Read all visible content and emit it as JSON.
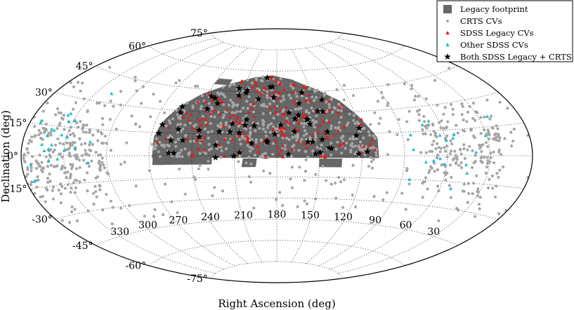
{
  "chart_data": {
    "type": "scatter",
    "projection": "aitoff",
    "xlabel": "Right Ascension (deg)",
    "ylabel": "Declination (deg)",
    "ra_tick_labels": [
      {
        "ra": 330,
        "label": "330"
      },
      {
        "ra": 300,
        "label": "300"
      },
      {
        "ra": 270,
        "label": "270"
      },
      {
        "ra": 240,
        "label": "240"
      },
      {
        "ra": 210,
        "label": "210"
      },
      {
        "ra": 180,
        "label": "180"
      },
      {
        "ra": 150,
        "label": "150"
      },
      {
        "ra": 120,
        "label": "120"
      },
      {
        "ra": 90,
        "label": "90"
      },
      {
        "ra": 60,
        "label": "60"
      },
      {
        "ra": 30,
        "label": "30"
      }
    ],
    "dec_tick_labels": [
      {
        "dec": 75,
        "label": "75°"
      },
      {
        "dec": 60,
        "label": "60°"
      },
      {
        "dec": 45,
        "label": "45°"
      },
      {
        "dec": 30,
        "label": "30°"
      },
      {
        "dec": 15,
        "label": "15°"
      },
      {
        "dec": 0,
        "label": "0°"
      },
      {
        "dec": -15,
        "label": "-15°"
      },
      {
        "dec": -30,
        "label": "-30°"
      },
      {
        "dec": -45,
        "label": "-45°"
      },
      {
        "dec": -60,
        "label": "-60°"
      },
      {
        "dec": -75,
        "label": "-75°"
      }
    ],
    "footprint": {
      "name": "Legacy footprint",
      "color": "#666666",
      "ra_range": [
        108,
        268
      ],
      "dec_max_profile": [
        {
          "ra": 108,
          "dec": 12
        },
        {
          "ra": 112,
          "dec": 18
        },
        {
          "ra": 118,
          "dec": 27
        },
        {
          "ra": 128,
          "dec": 38
        },
        {
          "ra": 145,
          "dec": 47
        },
        {
          "ra": 165,
          "dec": 54
        },
        {
          "ra": 185,
          "dec": 57
        },
        {
          "ra": 205,
          "dec": 55
        },
        {
          "ra": 225,
          "dec": 50
        },
        {
          "ra": 245,
          "dec": 42
        },
        {
          "ra": 258,
          "dec": 32
        },
        {
          "ra": 265,
          "dec": 22
        },
        {
          "ra": 268,
          "dec": 12
        }
      ],
      "dec_min": -1.5
    },
    "series": [
      {
        "name": "CRTS CVs",
        "marker": "circle",
        "color": "#a6a6a6",
        "count": 1100
      },
      {
        "name": "SDSS Legacy CVs",
        "marker": "triangle",
        "color": "#e31a1c",
        "count": 170
      },
      {
        "name": "Other SDSS CVs",
        "marker": "triangle",
        "color": "#17becf",
        "count": 45
      },
      {
        "name": "Both SDSS Legacy + CRTS",
        "marker": "star",
        "color": "#000000",
        "count": 65
      }
    ],
    "legend": {
      "position": "top-right",
      "entries": [
        "Legacy footprint",
        "CRTS CVs",
        "SDSS Legacy CVs",
        "Other SDSS CVs",
        "Both SDSS Legacy + CRTS"
      ]
    },
    "grid": true
  }
}
